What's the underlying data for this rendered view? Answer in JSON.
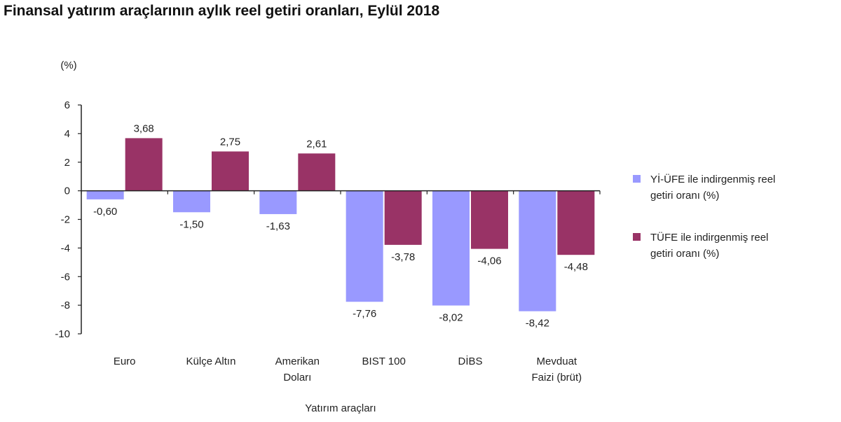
{
  "chart_data": {
    "type": "bar",
    "title": "Finansal yatırım araçlarının aylık reel getiri oranları, Eylül 2018",
    "ylabel": "(%)",
    "xlabel": "Yatırım araçları",
    "ylim": [
      -10,
      6
    ],
    "yticks": [
      6,
      4,
      2,
      0,
      -2,
      -4,
      -6,
      -8,
      -10
    ],
    "categories": [
      [
        "Euro"
      ],
      [
        "Külçe Altın"
      ],
      [
        "Amerikan",
        "Doları"
      ],
      [
        "BIST 100"
      ],
      [
        "DİBS"
      ],
      [
        "Mevduat",
        "Faizi (brüt)"
      ]
    ],
    "series": [
      {
        "name": "Yİ-ÜFE ile indirgenmiş reel getiri oranı (%)",
        "color": "#9999ff",
        "values": [
          -0.6,
          -1.5,
          -1.63,
          -7.76,
          -8.02,
          -8.42
        ],
        "labels": [
          "-0,60",
          "-1,50",
          "-1,63",
          "-7,76",
          "-8,02",
          "-8,42"
        ]
      },
      {
        "name": "TÜFE ile indirgenmiş reel getiri oranı (%)",
        "color": "#993366",
        "values": [
          3.68,
          2.75,
          2.61,
          -3.78,
          -4.06,
          -4.48
        ],
        "labels": [
          "3,68",
          "2,75",
          "2,61",
          "-3,78",
          "-4,06",
          "-4,48"
        ]
      }
    ],
    "legend": {
      "position": "right",
      "entries": [
        [
          "Yİ-ÜFE ile indirgenmiş reel",
          "getiri oranı (%)"
        ],
        [
          "TÜFE ile indirgenmiş reel",
          "getiri oranı (%)"
        ]
      ]
    },
    "grid": false
  }
}
